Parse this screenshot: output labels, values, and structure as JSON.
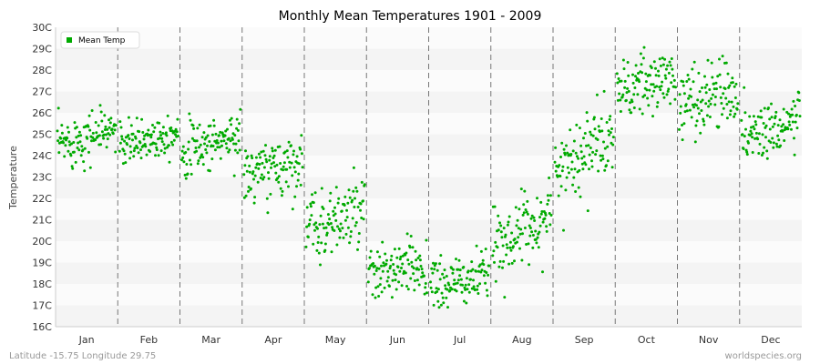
{
  "chart_data": {
    "type": "scatter",
    "title": "Monthly Mean Temperatures 1901 - 2009",
    "ylabel": "Temperature",
    "xlabel": "",
    "categories": [
      "Jan",
      "Feb",
      "Mar",
      "Apr",
      "May",
      "Jun",
      "Jul",
      "Aug",
      "Sep",
      "Oct",
      "Nov",
      "Dec"
    ],
    "y_ticks": [
      "16C",
      "17C",
      "18C",
      "19C",
      "20C",
      "21C",
      "22C",
      "23C",
      "24C",
      "25C",
      "26C",
      "27C",
      "28C",
      "29C",
      "30C"
    ],
    "ylim": [
      16,
      30
    ],
    "grid": "horizontal bands, dashed vertical month separators",
    "legend": {
      "position": "top-left",
      "entries": [
        "Mean Temp"
      ]
    },
    "series": [
      {
        "name": "Mean Temp",
        "color": "#00aa00",
        "years": "1901-2009",
        "monthly_mean": [
          24.9,
          24.8,
          24.6,
          23.4,
          21.0,
          18.6,
          18.1,
          20.5,
          24.2,
          27.3,
          26.8,
          25.3
        ],
        "monthly_spread": [
          0.6,
          0.5,
          0.6,
          0.7,
          0.8,
          0.7,
          0.6,
          0.8,
          0.9,
          0.7,
          0.8,
          0.7
        ],
        "monthly_trend": [
          0.8,
          0.8,
          0.8,
          0.8,
          0.8,
          0.6,
          0.6,
          1.5,
          1.6,
          0.8,
          0.8,
          0.8
        ]
      }
    ]
  },
  "footer": {
    "left": "Latitude -15.75 Longitude 29.75",
    "right": "worldspecies.org"
  }
}
